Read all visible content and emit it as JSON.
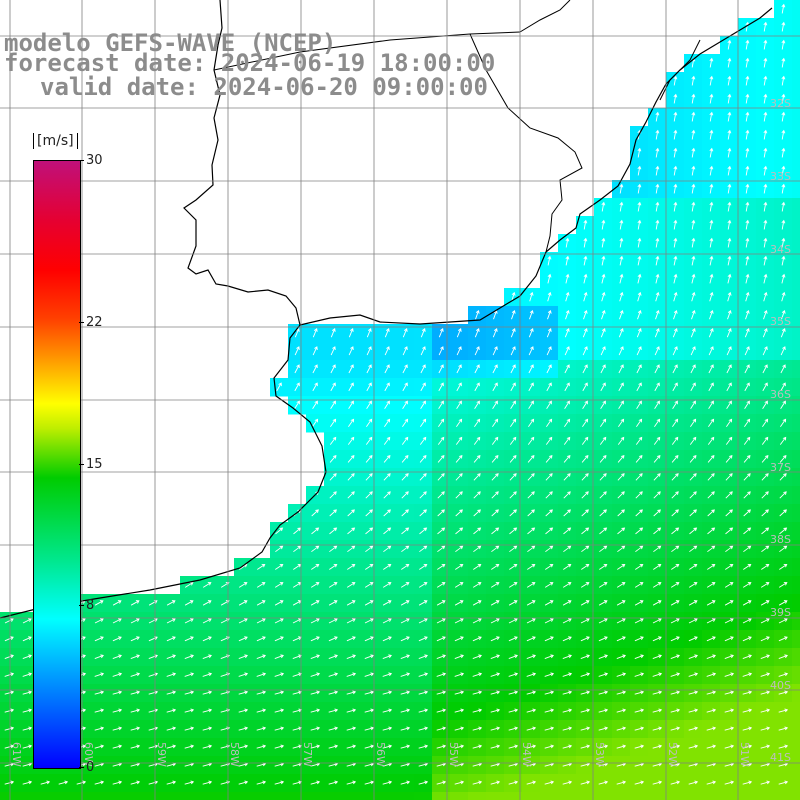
{
  "header": {
    "model": "modelo GEFS-WAVE (NCEP)",
    "forecast": "forecast date: 2024-06-19 18:00:00",
    "valid": "valid date: 2024-06-20 09:00:00"
  },
  "colorbar": {
    "unit": "[m/s]",
    "ticks": [
      "30",
      "22",
      "15",
      "8",
      "0"
    ],
    "tick_values": [
      30,
      22,
      15,
      8,
      0
    ],
    "range": [
      0,
      30
    ],
    "colors": [
      "#0000ff",
      "#0090ff",
      "#00ffff",
      "#00e890",
      "#00cc00",
      "#bfee00",
      "#ffff00",
      "#ff9000",
      "#ff4000",
      "#ff0000",
      "#e60030",
      "#c0107a"
    ]
  },
  "grid": {
    "lat_labels": [
      "32S",
      "33S",
      "34S",
      "35S",
      "36S",
      "37S",
      "38S",
      "39S",
      "40S",
      "41S"
    ],
    "lon_labels": [
      "61W",
      "60W",
      "59W",
      "58W",
      "57W",
      "56W",
      "55W",
      "54W",
      "53W",
      "52W",
      "51W"
    ]
  },
  "map": {
    "variable": "wind speed with direction arrows",
    "arrow_color": "#ffffff",
    "land_color": "#ffffff",
    "coast_color": "#000000",
    "grid_color": "#808080"
  }
}
